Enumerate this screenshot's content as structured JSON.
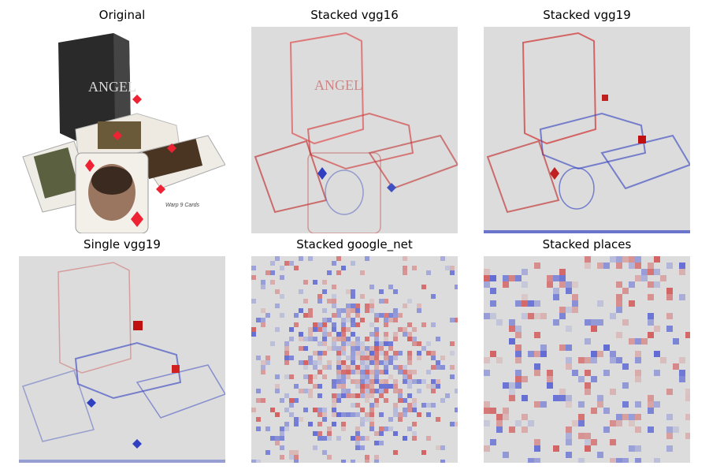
{
  "figure": {
    "panels": [
      {
        "title": "Original",
        "kind": "photo"
      },
      {
        "title": "Stacked vgg16",
        "kind": "saliency-edges"
      },
      {
        "title": "Stacked vgg19",
        "kind": "saliency-edges"
      },
      {
        "title": "Single vgg19",
        "kind": "saliency-edges"
      },
      {
        "title": "Stacked google_net",
        "kind": "saliency-noise"
      },
      {
        "title": "Stacked places",
        "kind": "saliency-blocks"
      }
    ],
    "photo_text": {
      "brand": "ANGEL",
      "credit": "Warp 9 Cards"
    },
    "colors": {
      "positive": "#d01010",
      "negative": "#2030d0",
      "neutral": "#dcdcdc"
    }
  }
}
